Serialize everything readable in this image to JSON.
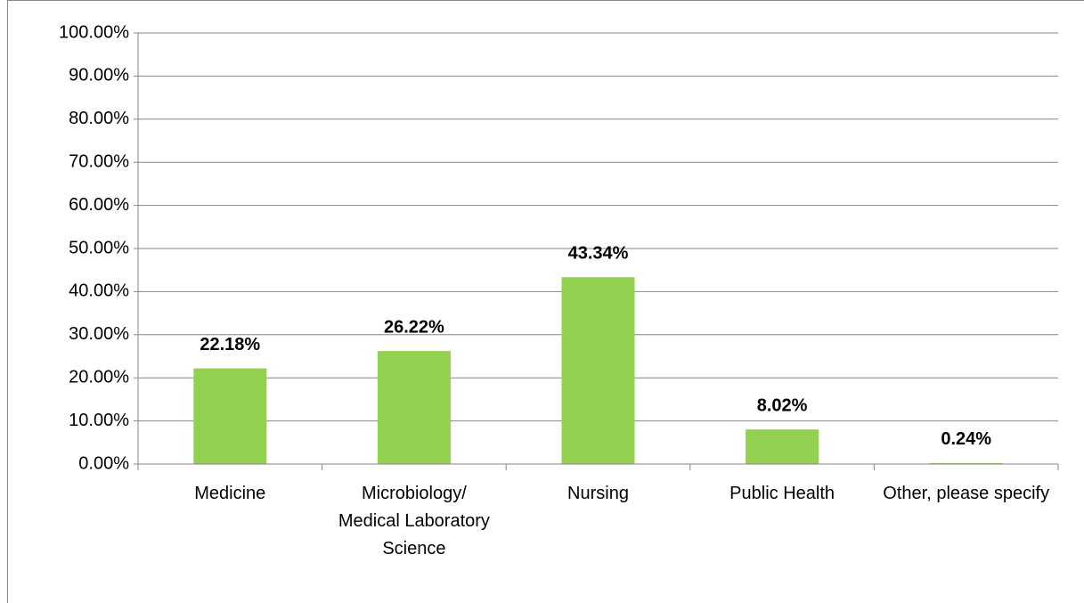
{
  "chart_data": {
    "type": "bar",
    "categories": [
      "Medicine",
      "Microbiology/ Medical Laboratory Science",
      "Nursing",
      "Public Health",
      "Other, please specify"
    ],
    "values": [
      22.18,
      26.22,
      43.34,
      8.02,
      0.24
    ],
    "value_labels": [
      "22.18%",
      "26.22%",
      "43.34%",
      "8.02%",
      "0.24%"
    ],
    "color": "#92d050",
    "ylim": [
      0,
      100
    ],
    "yticks": [
      {
        "value": 0,
        "label": "0.00%"
      },
      {
        "value": 10,
        "label": "10.00%"
      },
      {
        "value": 20,
        "label": "20.00%"
      },
      {
        "value": 30,
        "label": "30.00%"
      },
      {
        "value": 40,
        "label": "40.00%"
      },
      {
        "value": 50,
        "label": "50.00%"
      },
      {
        "value": 60,
        "label": "60.00%"
      },
      {
        "value": 70,
        "label": "70.00%"
      },
      {
        "value": 80,
        "label": "80.00%"
      },
      {
        "value": 90,
        "label": "90.00%"
      },
      {
        "value": 100,
        "label": "100.00%"
      }
    ],
    "grid": true
  }
}
